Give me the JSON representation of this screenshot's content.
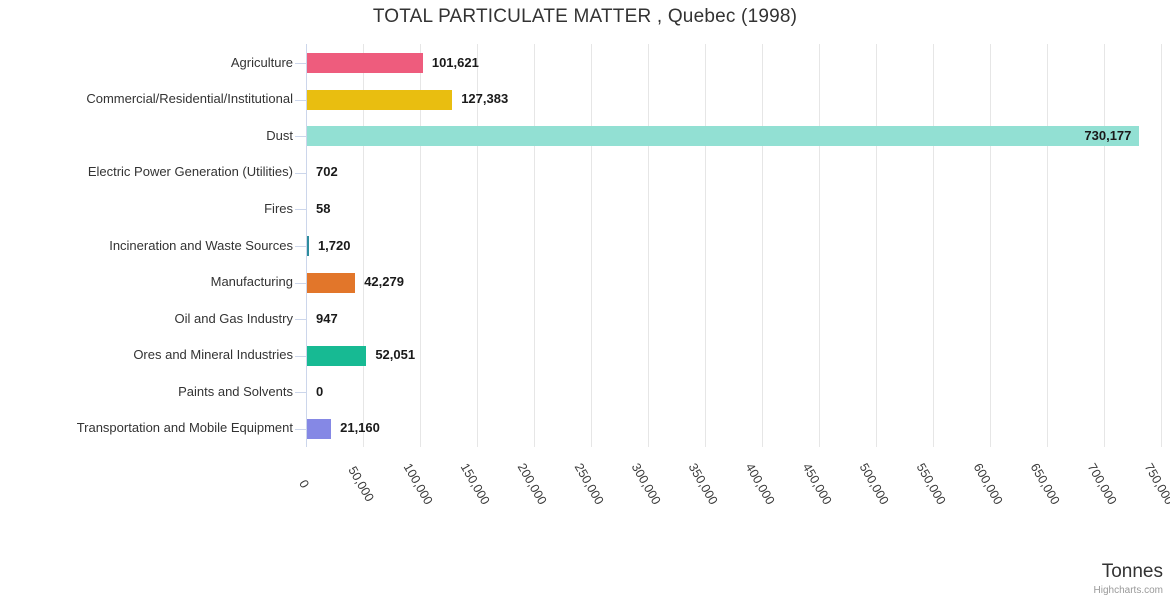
{
  "title": "TOTAL PARTICULATE MATTER , Quebec (1998)",
  "x_axis_title": "Tonnes",
  "credits": "Highcharts.com",
  "chart_data": {
    "type": "bar",
    "orientation": "horizontal",
    "title": "TOTAL PARTICULATE MATTER , Quebec (1998)",
    "xlabel": "Tonnes",
    "ylabel": "",
    "xlim": [
      0,
      750000
    ],
    "tick_interval": 50000,
    "grid": true,
    "legend": "none",
    "categories": [
      "Agriculture",
      "Commercial/Residential/Institutional",
      "Dust",
      "Electric Power Generation (Utilities)",
      "Fires",
      "Incineration and Waste Sources",
      "Manufacturing",
      "Oil and Gas Industry",
      "Ores and Mineral Industries",
      "Paints and Solvents",
      "Transportation and Mobile Equipment"
    ],
    "values": [
      101621,
      127383,
      730177,
      702,
      58,
      1720,
      42279,
      947,
      52051,
      0,
      21160
    ],
    "value_labels": [
      "101,621",
      "127,383",
      "730,177",
      "702",
      "58",
      "1,720",
      "42,279",
      "947",
      "52,051",
      "0",
      "21,160"
    ],
    "bar_colors": [
      "#ee5c7d",
      "#e9be10",
      "#92e0d3",
      "#cccccc",
      "#cccccc",
      "#2e8d9e",
      "#e2762a",
      "#cccccc",
      "#17ba93",
      "#cccccc",
      "#8588e5"
    ],
    "x_tick_labels": [
      "0",
      "50,000",
      "100,000",
      "150,000",
      "200,000",
      "250,000",
      "300,000",
      "350,000",
      "400,000",
      "450,000",
      "500,000",
      "550,000",
      "600,000",
      "650,000",
      "700,000",
      "750,000"
    ],
    "colors": {
      "grid_line": "#e6e6e6",
      "axis_line": "#ccd6eb",
      "category_tick": "#ccd6eb",
      "title_text": "#333333",
      "label_text": "#333333",
      "value_text": "#1a1a1a",
      "credits_text": "#999999"
    }
  }
}
